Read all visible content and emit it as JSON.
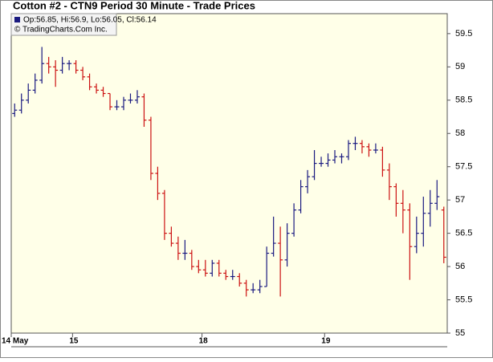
{
  "chart_data": {
    "type": "ohlc",
    "title": "Cotton #2 - CTN9 Period 30 Minute - Trade Prices",
    "legend_text": "Op:56.85, Hi:56.9, Lo:56.05, Cl:56.14",
    "copyright": "© TradingCharts.Com Inc.",
    "up_color": "#1a1a80",
    "down_color": "#cc1111",
    "background": "#ffffe8",
    "ylim": [
      55,
      59.8
    ],
    "yticks": [
      55,
      55.5,
      56,
      56.5,
      57,
      57.5,
      58,
      58.5,
      59,
      59.5
    ],
    "grid": false,
    "categories": [
      "14 May",
      null,
      null,
      null,
      null,
      null,
      null,
      null,
      null,
      "15",
      null,
      null,
      null,
      null,
      null,
      null,
      null,
      null,
      null,
      null,
      null,
      null,
      null,
      null,
      null,
      null,
      null,
      null,
      "18",
      null,
      null,
      null,
      null,
      null,
      null,
      null,
      null,
      null,
      null,
      null,
      null,
      null,
      null,
      null,
      null,
      null,
      "19",
      null,
      null,
      null,
      null,
      null,
      null,
      null,
      null,
      null,
      null,
      null,
      null,
      null,
      null,
      null,
      null,
      null
    ],
    "open": [
      58.3,
      58.35,
      58.5,
      58.65,
      58.8,
      59.05,
      59.0,
      58.95,
      59.05,
      59.05,
      58.95,
      58.85,
      58.7,
      58.65,
      58.6,
      58.4,
      58.4,
      58.5,
      58.5,
      58.55,
      58.2,
      57.4,
      57.1,
      56.5,
      56.35,
      56.2,
      56.2,
      56.0,
      55.95,
      55.9,
      56.05,
      55.9,
      55.85,
      55.85,
      55.75,
      55.65,
      55.65,
      55.7,
      56.2,
      56.35,
      56.1,
      56.5,
      56.85,
      57.2,
      57.35,
      57.55,
      57.55,
      57.6,
      57.65,
      57.65,
      57.85,
      57.85,
      57.8,
      57.75,
      57.75,
      57.45,
      57.2,
      56.95,
      56.85,
      56.3,
      56.5,
      56.8,
      56.95,
      56.85
    ],
    "high": [
      58.45,
      58.6,
      58.75,
      58.9,
      59.3,
      59.15,
      59.1,
      59.15,
      59.1,
      59.1,
      59.0,
      58.9,
      58.75,
      58.7,
      58.6,
      58.5,
      58.55,
      58.6,
      58.65,
      58.6,
      58.25,
      57.5,
      57.15,
      56.6,
      56.45,
      56.4,
      56.25,
      56.1,
      56.1,
      56.1,
      56.1,
      55.95,
      55.95,
      55.9,
      55.8,
      55.75,
      55.8,
      56.3,
      56.75,
      56.6,
      56.65,
      56.95,
      57.3,
      57.45,
      57.75,
      57.65,
      57.7,
      57.75,
      57.7,
      57.9,
      57.95,
      57.9,
      57.85,
      57.85,
      57.8,
      57.55,
      57.25,
      57.15,
      56.95,
      56.75,
      57.05,
      57.15,
      57.3,
      56.9
    ],
    "low": [
      58.25,
      58.3,
      58.45,
      58.6,
      58.75,
      58.9,
      58.7,
      58.9,
      58.95,
      58.9,
      58.8,
      58.65,
      58.6,
      58.55,
      58.35,
      58.35,
      58.35,
      58.45,
      58.45,
      58.1,
      57.3,
      57.0,
      56.4,
      56.3,
      56.1,
      56.1,
      55.95,
      55.9,
      55.85,
      55.85,
      55.85,
      55.8,
      55.8,
      55.7,
      55.55,
      55.6,
      55.6,
      55.7,
      56.15,
      55.55,
      56.0,
      56.45,
      56.8,
      57.1,
      57.3,
      57.5,
      57.5,
      57.55,
      57.55,
      57.6,
      57.75,
      57.7,
      57.65,
      57.7,
      57.35,
      57.0,
      56.75,
      56.5,
      55.8,
      56.2,
      56.3,
      56.6,
      56.85,
      56.05
    ],
    "close": [
      58.35,
      58.5,
      58.65,
      58.8,
      59.05,
      59.0,
      58.95,
      59.05,
      59.05,
      58.95,
      58.85,
      58.7,
      58.65,
      58.6,
      58.4,
      58.4,
      58.5,
      58.5,
      58.55,
      58.2,
      57.4,
      57.1,
      56.5,
      56.35,
      56.2,
      56.2,
      56.0,
      55.95,
      55.9,
      56.05,
      55.9,
      55.85,
      55.85,
      55.75,
      55.65,
      55.65,
      55.7,
      56.2,
      56.35,
      56.1,
      56.5,
      56.85,
      57.2,
      57.35,
      57.55,
      57.55,
      57.6,
      57.65,
      57.65,
      57.85,
      57.85,
      57.8,
      57.75,
      57.75,
      57.45,
      57.2,
      56.95,
      56.85,
      56.3,
      56.5,
      56.8,
      56.95,
      57.05,
      56.14
    ]
  }
}
